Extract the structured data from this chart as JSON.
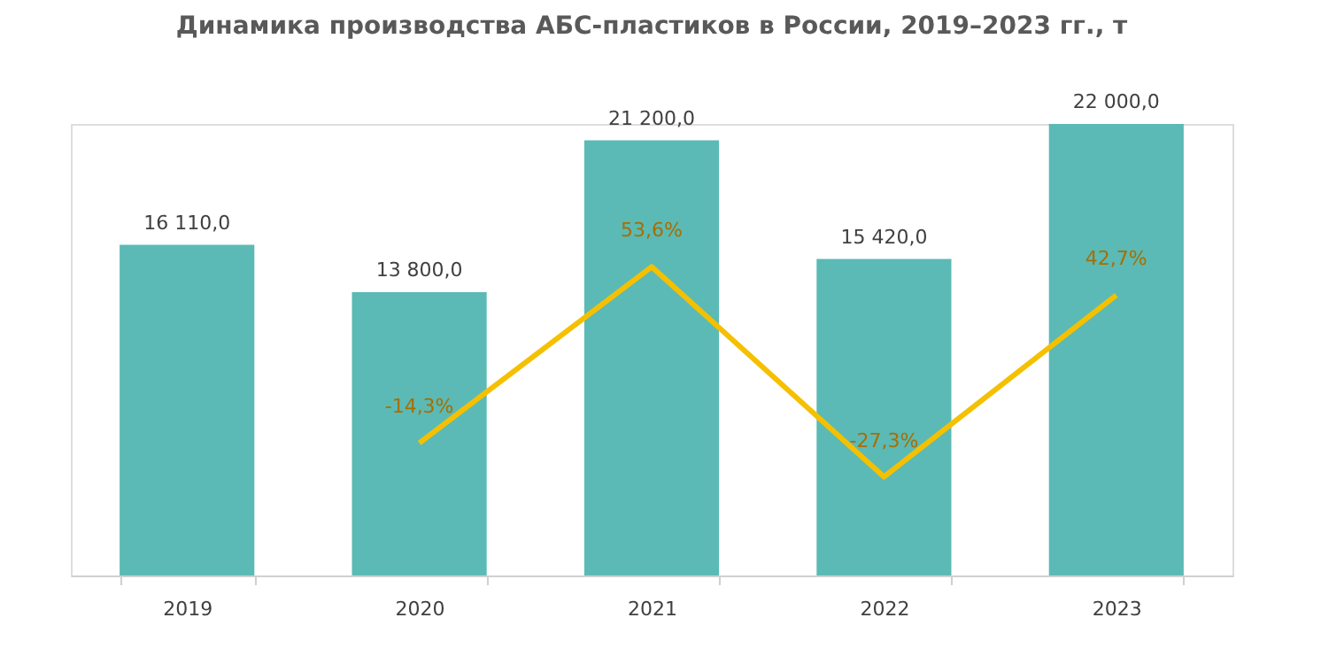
{
  "chart_data": {
    "type": "bar",
    "title": "Динамика  производства  АБС-пластиков  в России,  2019–2023  гг., т",
    "categories": [
      "2019",
      "2020",
      "2021",
      "2022",
      "2023"
    ],
    "tick_labels": "x",
    "grid": false,
    "series": [
      {
        "color": "#5bbab5",
        "values": [
          16110.0,
          13800.0,
          21200.0,
          15420.0,
          22000.0
        ],
        "value_labels": [
          "16 110,0",
          "13 800,0",
          "21 200,0",
          "15 420,0",
          "22 000,0"
        ]
      },
      {
        "type": "line",
        "axis": "y2",
        "color": "#f5c000",
        "values": [
          null,
          -14.3,
          53.6,
          -27.3,
          42.7
        ],
        "value_labels": [
          null,
          "-14,3%",
          "53,6%",
          "-27,3%",
          "42,7%"
        ]
      }
    ]
  }
}
